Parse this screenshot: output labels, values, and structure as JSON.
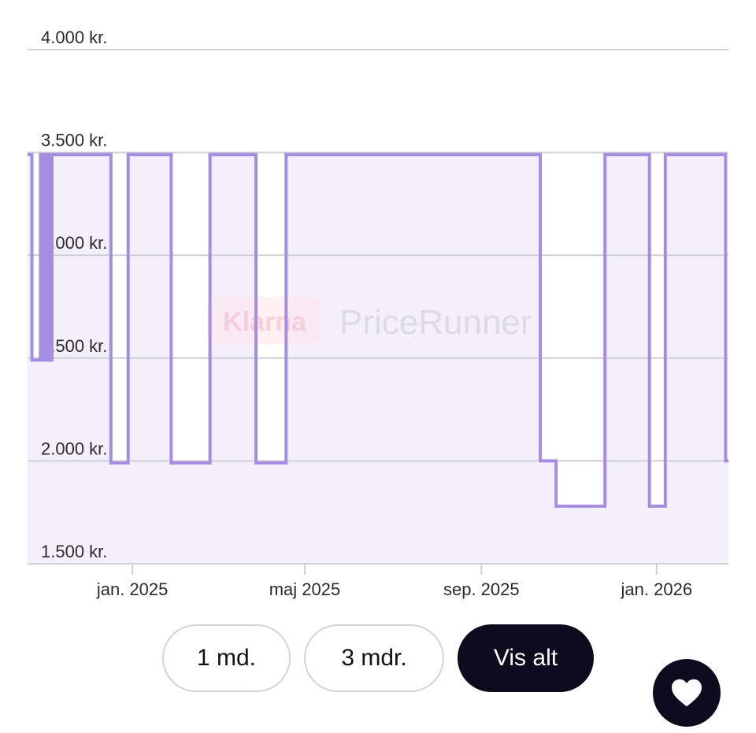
{
  "chart_data": {
    "type": "line",
    "step": true,
    "title": "",
    "xlabel": "",
    "ylabel": "",
    "ylim": [
      1500,
      4000
    ],
    "yticks": [
      1500,
      2000,
      2500,
      3000,
      3500,
      4000
    ],
    "ytick_labels": [
      "1.500 kr.",
      "2.000 kr.",
      "2.500 kr.",
      "3.000 kr.",
      "3.500 kr.",
      "4.000 kr."
    ],
    "xlim": [
      "2024-10-20",
      "2026-02-20"
    ],
    "xticks": [
      {
        "date": "2025-01-01",
        "label": "jan. 2025"
      },
      {
        "date": "2025-05-01",
        "label": "maj 2025"
      },
      {
        "date": "2025-09-01",
        "label": "sep. 2025"
      },
      {
        "date": "2026-01-01",
        "label": "jan. 2026"
      }
    ],
    "grid": true,
    "line_color": "#a58de2",
    "fill_color": "#f3f0fc",
    "series": [
      {
        "name": "",
        "points": [
          {
            "x": "2024-10-20",
            "y": 3490
          },
          {
            "x": "2024-10-23",
            "y": 2490
          },
          {
            "x": "2024-10-29",
            "y": 3490
          },
          {
            "x": "2024-10-30",
            "y": 2490
          },
          {
            "x": "2024-10-31",
            "y": 3490
          },
          {
            "x": "2024-11-01",
            "y": 2490
          },
          {
            "x": "2024-11-02",
            "y": 3490
          },
          {
            "x": "2024-11-03",
            "y": 2490
          },
          {
            "x": "2024-11-04",
            "y": 3490
          },
          {
            "x": "2024-11-05",
            "y": 2490
          },
          {
            "x": "2024-11-06",
            "y": 3490
          },
          {
            "x": "2024-12-17",
            "y": 1990
          },
          {
            "x": "2024-12-29",
            "y": 3490
          },
          {
            "x": "2025-01-28",
            "y": 1990
          },
          {
            "x": "2025-02-24",
            "y": 3490
          },
          {
            "x": "2025-03-28",
            "y": 1990
          },
          {
            "x": "2025-04-18",
            "y": 3490
          },
          {
            "x": "2025-10-12",
            "y": 2000
          },
          {
            "x": "2025-10-23",
            "y": 1780
          },
          {
            "x": "2025-11-26",
            "y": 3490
          },
          {
            "x": "2025-12-27",
            "y": 1780
          },
          {
            "x": "2026-01-07",
            "y": 3490
          },
          {
            "x": "2026-02-18",
            "y": 2000
          },
          {
            "x": "2026-02-20",
            "y": 2000
          }
        ]
      }
    ]
  },
  "watermark": {
    "klarna": "Klarna",
    "pricerunner": "PriceRunner"
  },
  "range_buttons": {
    "one_month": "1 md.",
    "three_months": "3 mdr.",
    "all": "Vis alt"
  },
  "favorite": {
    "icon": "heart-icon"
  }
}
